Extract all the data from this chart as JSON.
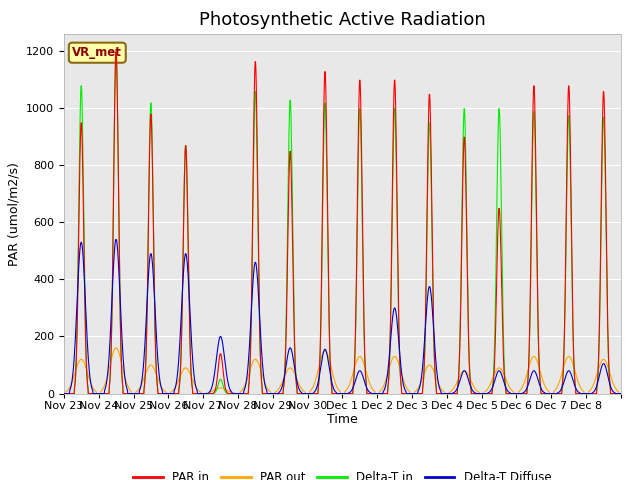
{
  "title": "Photosynthetic Active Radiation",
  "ylabel": "PAR (umol/m2/s)",
  "xlabel": "Time",
  "ylim": [
    0,
    1260
  ],
  "yticks": [
    0,
    200,
    400,
    600,
    800,
    1000,
    1200
  ],
  "background_color": "#e8e8e8",
  "label_box_text": "VR_met",
  "label_box_facecolor": "#ffffaa",
  "label_box_edgecolor": "#8b6914",
  "colors": {
    "PAR_in": "#ff0000",
    "PAR_out": "#ffa500",
    "Delta_T_in": "#00ee00",
    "Delta_T_Diffuse": "#0000cc"
  },
  "legend_labels": [
    "PAR in",
    "PAR out",
    "Delta-T in",
    "Delta-T Diffuse"
  ],
  "num_days": 16,
  "day_labels": [
    "Nov 23",
    "Nov 24",
    "Nov 25",
    "Nov 26",
    "Nov 27",
    "Nov 28",
    "Nov 29",
    "Nov 30",
    "Dec 1",
    "Dec 2",
    "Dec 3",
    "Dec 4",
    "Dec 5",
    "Dec 6",
    "Dec 7",
    "Dec 8"
  ],
  "title_fontsize": 13,
  "axis_label_fontsize": 9,
  "tick_fontsize": 8,
  "par_in_peaks": [
    950,
    1200,
    980,
    870,
    140,
    1165,
    850,
    1130,
    1100,
    1100,
    1050,
    900,
    650,
    1080,
    1080,
    1060
  ],
  "par_out_peaks": [
    120,
    160,
    100,
    90,
    20,
    120,
    90,
    150,
    130,
    130,
    100,
    80,
    90,
    130,
    130,
    120
  ],
  "delta_t_peaks": [
    1080,
    1200,
    1020,
    870,
    50,
    1060,
    1030,
    1020,
    1000,
    1000,
    950,
    1000,
    1000,
    990,
    975,
    970
  ],
  "delta_d_peaks": [
    530,
    540,
    490,
    490,
    200,
    460,
    160,
    155,
    80,
    300,
    375,
    80,
    80,
    80,
    80,
    105
  ],
  "pts_per_day": 96,
  "sigma_narrow": 0.07,
  "sigma_wide": 0.18
}
